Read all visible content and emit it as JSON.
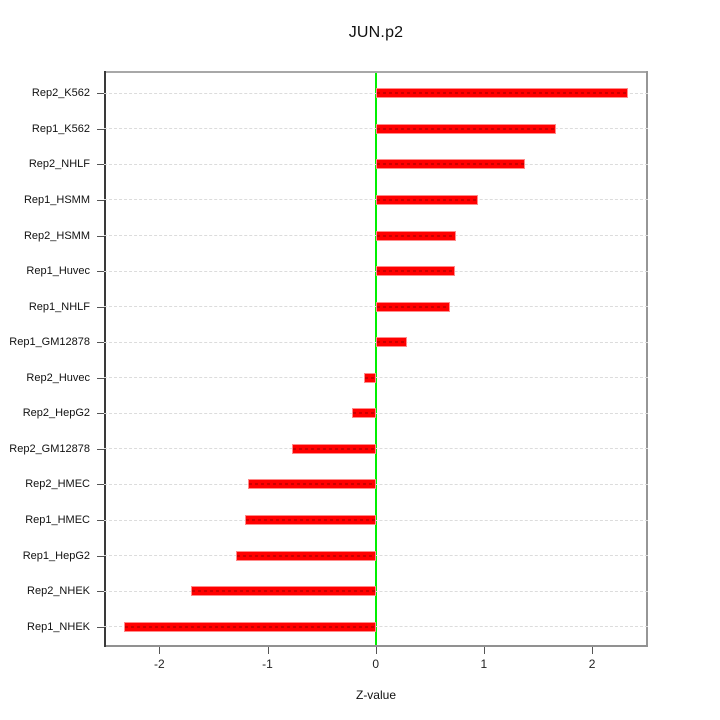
{
  "chart_data": {
    "type": "bar",
    "orientation": "horizontal",
    "title": "JUN.p2",
    "xlabel": "Z-value",
    "ylabel": "",
    "xlim": [
      -2.51,
      2.52
    ],
    "x_ticks": [
      -2,
      -1,
      0,
      1,
      2
    ],
    "x_tick_labels": [
      "-2",
      "-1",
      "0",
      "1",
      "2"
    ],
    "zero_reference_line": 0,
    "grid": "horizontal dashed line at each category",
    "legend_position": "none",
    "categories": [
      "Rep2_K562",
      "Rep1_K562",
      "Rep2_NHLF",
      "Rep1_HSMM",
      "Rep2_HSMM",
      "Rep1_Huvec",
      "Rep1_NHLF",
      "Rep1_GM12878",
      "Rep2_Huvec",
      "Rep2_HepG2",
      "Rep2_GM12878",
      "Rep2_HMEC",
      "Rep1_HMEC",
      "Rep1_HepG2",
      "Rep2_NHEK",
      "Rep1_NHEK"
    ],
    "values": [
      2.33,
      1.67,
      1.38,
      0.95,
      0.74,
      0.73,
      0.69,
      0.29,
      -0.11,
      -0.22,
      -0.77,
      -1.18,
      -1.21,
      -1.29,
      -1.71,
      -2.33
    ],
    "colors": {
      "bar_fill": "#FF0000",
      "bar_border": "#FF8A8A",
      "bar_inner_dash": "#CC0000",
      "zero_line": "#00F000",
      "gridline": "#DCDCDC",
      "box_left": "#3A3A3A",
      "box_top": "#A8A8A8",
      "box_right": "#969696",
      "box_bottom": "#919191",
      "tick": "#555555",
      "text": "#111111",
      "background": "#FFFFFF"
    }
  }
}
